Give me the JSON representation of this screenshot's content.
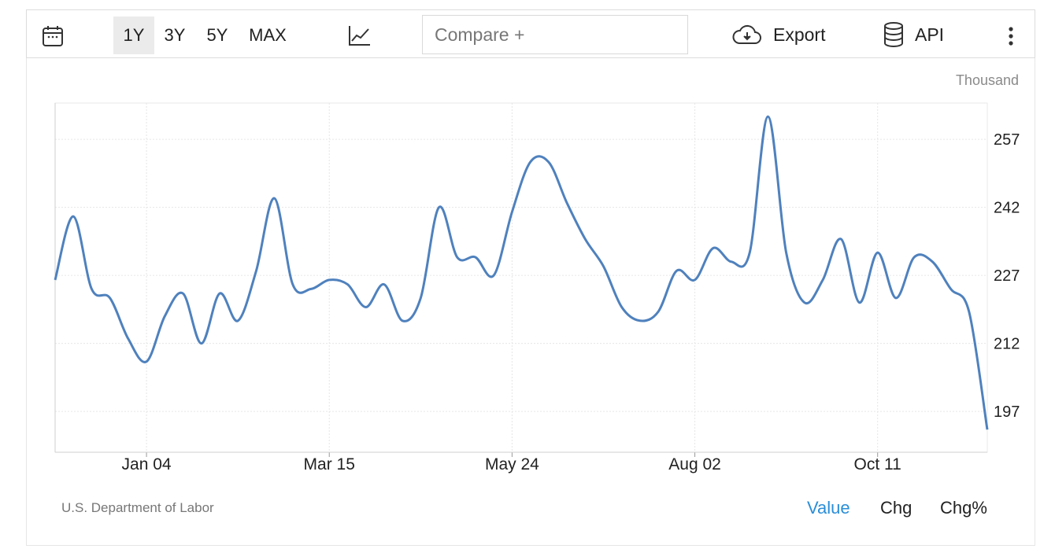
{
  "toolbar": {
    "ranges": [
      "1Y",
      "3Y",
      "5Y",
      "MAX"
    ],
    "active_range": "1Y",
    "compare_placeholder": "Compare +",
    "export_label": "Export",
    "api_label": "API",
    "icons": [
      "calendar-icon",
      "line-chart-icon",
      "cloud-download-icon",
      "database-icon",
      "more-vertical-icon"
    ]
  },
  "chart_data": {
    "type": "line",
    "unit_label": "Thousand",
    "ylim": [
      188,
      265
    ],
    "yticks": [
      197,
      212,
      227,
      242,
      257
    ],
    "xtick_labels": [
      "Jan 04",
      "Mar 15",
      "May 24",
      "Aug 02",
      "Oct 11"
    ],
    "xtick_index": [
      5,
      15,
      25,
      35,
      45
    ],
    "grid": true,
    "y_axis_position": "right",
    "color": "#4f81bd",
    "series": [
      {
        "values": [
          226,
          240,
          224,
          222,
          213,
          208,
          218,
          223,
          212,
          223,
          217,
          228,
          244,
          225,
          224,
          226,
          225,
          220,
          225,
          217,
          222,
          242,
          231,
          231,
          227,
          241,
          252,
          252,
          243,
          235,
          229,
          220,
          217,
          219,
          228,
          226,
          233,
          230,
          232,
          262,
          232,
          221,
          226,
          235,
          221,
          232,
          222,
          231,
          230,
          224,
          219,
          193
        ]
      }
    ]
  },
  "footer": {
    "source": "U.S. Department of Labor",
    "modes": [
      "Value",
      "Chg",
      "Chg%"
    ],
    "active_mode": "Value",
    "active_color": "#2a8ed8"
  }
}
